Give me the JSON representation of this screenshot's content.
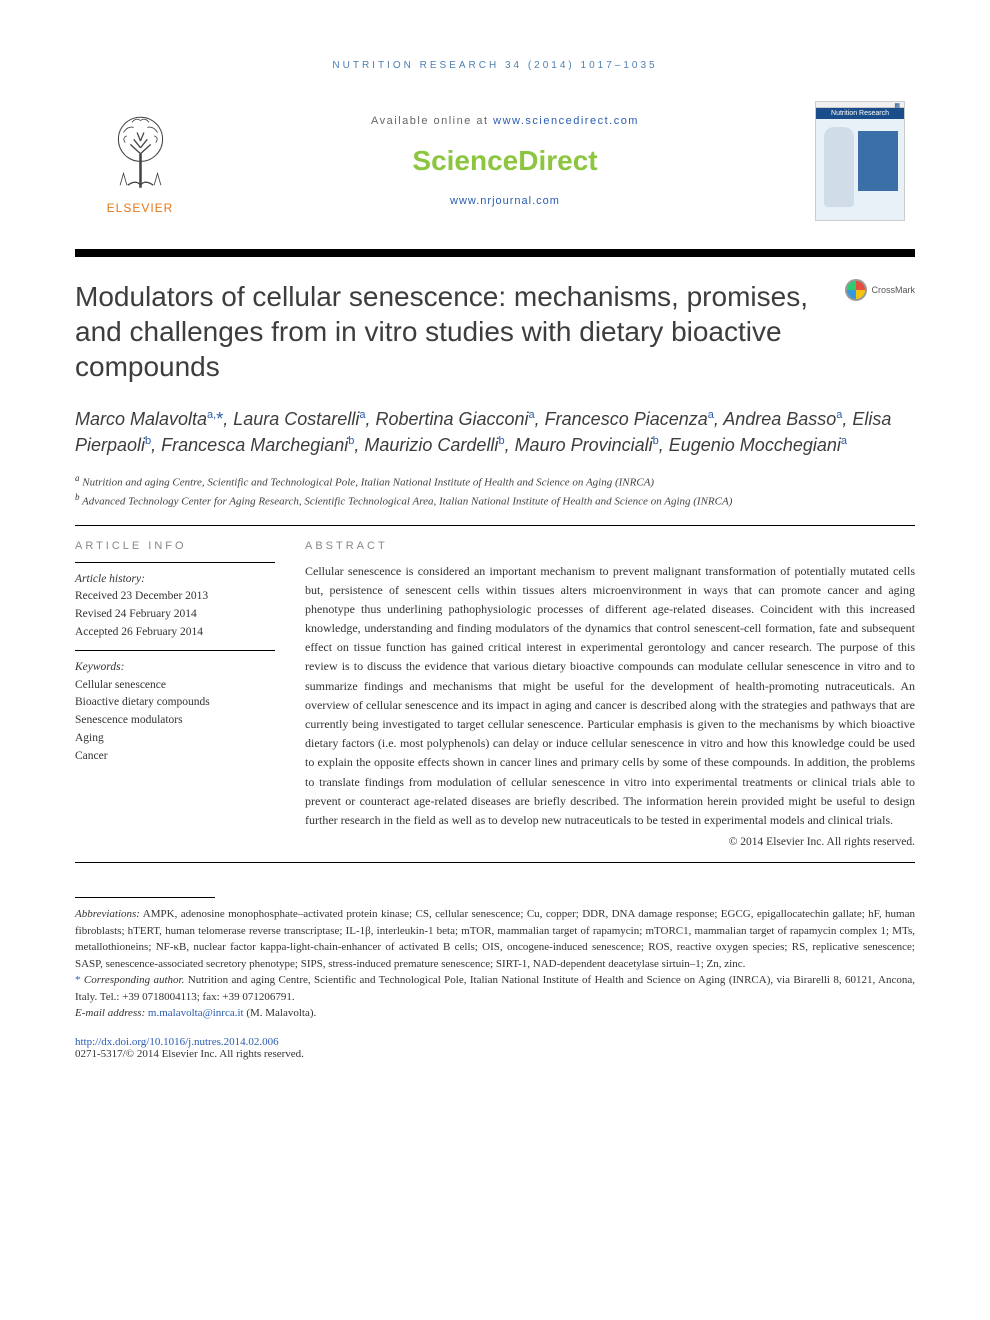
{
  "running_head": "NUTRITION RESEARCH 34 (2014) 1017–1035",
  "masthead": {
    "available_prefix": "Available online at ",
    "available_url": "www.sciencedirect.com",
    "sd_logo": "ScienceDirect",
    "journal_url": "www.nrjournal.com",
    "publisher": "ELSEVIER",
    "cover_title": "Nutrition Research"
  },
  "crossmark_label": "CrossMark",
  "title": "Modulators of cellular senescence: mechanisms, promises, and challenges from in vitro studies with dietary bioactive compounds",
  "authors_html": "Marco Malavolta<sup>a,</sup><span class='star'>*</span>, Laura Costarelli<sup>a</sup>, Robertina Giacconi<sup>a</sup>, Francesco Piacenza<sup>a</sup>, Andrea Basso<sup>a</sup>, Elisa Pierpaoli<sup>b</sup>, Francesca Marchegiani<sup>b</sup>, Maurizio Cardelli<sup>b</sup>, Mauro Provinciali<sup>b</sup>, Eugenio Mocchegiani<sup>a</sup>",
  "affiliations": [
    {
      "mark": "a",
      "text": "Nutrition and aging Centre, Scientific and Technological Pole, Italian National Institute of Health and Science on Aging (INRCA)"
    },
    {
      "mark": "b",
      "text": "Advanced Technology Center for Aging Research, Scientific Technological Area, Italian National Institute of Health and Science on Aging (INRCA)"
    }
  ],
  "article_info": {
    "heading": "ARTICLE INFO",
    "history_label": "Article history:",
    "history": [
      "Received 23 December 2013",
      "Revised 24 February 2014",
      "Accepted 26 February 2014"
    ],
    "keywords_label": "Keywords:",
    "keywords": [
      "Cellular senescence",
      "Bioactive dietary compounds",
      "Senescence modulators",
      "Aging",
      "Cancer"
    ]
  },
  "abstract": {
    "heading": "ABSTRACT",
    "text": "Cellular senescence is considered an important mechanism to prevent malignant transformation of potentially mutated cells but, persistence of senescent cells within tissues alters microenvironment in ways that can promote cancer and aging phenotype thus underlining pathophysiologic processes of different age-related diseases. Coincident with this increased knowledge, understanding and finding modulators of the dynamics that control senescent-cell formation, fate and subsequent effect on tissue function has gained critical interest in experimental gerontology and cancer research. The purpose of this review is to discuss the evidence that various dietary bioactive compounds can modulate cellular senescence in vitro and to summarize findings and mechanisms that might be useful for the development of health-promoting nutraceuticals. An overview of cellular senescence and its impact in aging and cancer is described along with the strategies and pathways that are currently being investigated to target cellular senescence. Particular emphasis is given to the mechanisms by which bioactive dietary factors (i.e. most polyphenols) can delay or induce cellular senescence in vitro and how this knowledge could be used to explain the opposite effects shown in cancer lines and primary cells by some of these compounds. In addition, the problems to translate findings from modulation of cellular senescence in vitro into experimental treatments or clinical trials able to prevent or counteract age-related diseases are briefly described. The information herein provided might be useful to design further research in the field as well as to develop new nutraceuticals to be tested in experimental models and clinical trials.",
    "copyright": "© 2014 Elsevier Inc. All rights reserved."
  },
  "footnotes": {
    "abbrev_label": "Abbreviations:",
    "abbrev_text": "AMPK, adenosine monophosphate–activated protein kinase; CS, cellular senescence; Cu, copper; DDR, DNA damage response; EGCG, epigallocatechin gallate; hF, human fibroblasts; hTERT, human telomerase reverse transcriptase; IL-1β, interleukin-1 beta; mTOR, mammalian target of rapamycin; mTORC1, mammalian target of rapamycin complex 1; MTs, metallothioneins; NF-κB, nuclear factor kappa-light-chain-enhancer of activated B cells; OIS, oncogene-induced senescence; ROS, reactive oxygen species; RS, replicative senescence; SASP, senescence-associated secretory phenotype; SIPS, stress-induced premature senescence; SIRT-1, NAD-dependent deacetylase sirtuin–1; Zn, zinc.",
    "corr_label": "Corresponding author.",
    "corr_text": " Nutrition and aging Centre, Scientific and Technological Pole, Italian National Institute of Health and Science on Aging (INRCA), via Birarelli 8, 60121, Ancona, Italy. Tel.: +39 0718004113; fax: +39 071206791.",
    "email_label": "E-mail address: ",
    "email": "m.malavolta@inrca.it",
    "email_suffix": " (M. Malavolta)."
  },
  "doi": {
    "url": "http://dx.doi.org/10.1016/j.nutres.2014.02.006",
    "issn_line": "0271-5317/© 2014 Elsevier Inc. All rights reserved."
  },
  "colors": {
    "link": "#2a5db0",
    "elsevier_orange": "#e67817",
    "sd_green": "#8cc63f",
    "heading_gray": "#888888"
  }
}
